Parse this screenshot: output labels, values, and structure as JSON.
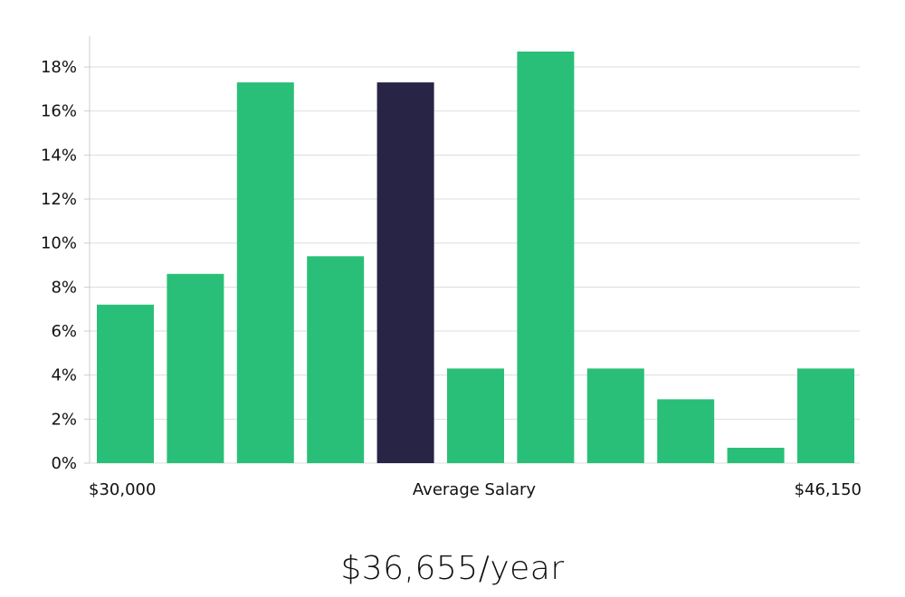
{
  "chart_data": {
    "type": "bar",
    "title": "",
    "xlabel": "Average Salary",
    "ylabel": "",
    "x_start_label": "$30,000",
    "x_end_label": "$46,150",
    "values": [
      7.2,
      8.6,
      17.3,
      9.4,
      17.3,
      4.3,
      18.7,
      4.3,
      2.9,
      0.7,
      4.3
    ],
    "highlight_index": 4,
    "y_ticks": [
      "0%",
      "2%",
      "4%",
      "6%",
      "8%",
      "10%",
      "12%",
      "14%",
      "16%",
      "18%"
    ],
    "ylim": [
      0,
      19.4
    ],
    "grid": true,
    "colors": {
      "bar": "#2abf78",
      "highlight": "#272446",
      "grid": "#dddddd",
      "axis": "#cccccc"
    }
  },
  "summary": {
    "average_salary": "$36,655/year"
  }
}
